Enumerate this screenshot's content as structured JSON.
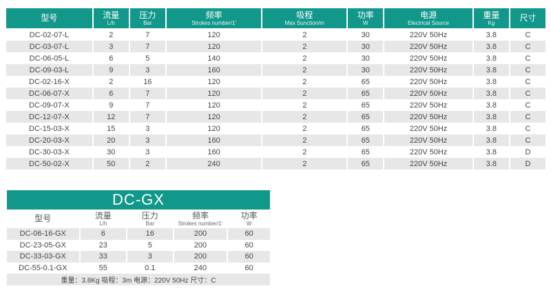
{
  "main_table": {
    "headers": [
      {
        "cn": "型号",
        "en": ""
      },
      {
        "cn": "流量",
        "en": "L/h"
      },
      {
        "cn": "压力",
        "en": "Bar"
      },
      {
        "cn": "频率",
        "en": "Strokes number/1'"
      },
      {
        "cn": "吸程",
        "en": "Max Sunction/m"
      },
      {
        "cn": "功率",
        "en": "W"
      },
      {
        "cn": "电源",
        "en": "Electrical Source"
      },
      {
        "cn": "重量",
        "en": "Kg"
      },
      {
        "cn": "尺寸",
        "en": ""
      }
    ],
    "rows": [
      [
        "DC-02-07-L",
        "2",
        "7",
        "120",
        "2",
        "30",
        "220V 50Hz",
        "3.8",
        "C"
      ],
      [
        "DC-03-07-L",
        "3",
        "7",
        "120",
        "2",
        "30",
        "220V 50Hz",
        "3.8",
        "C"
      ],
      [
        "DC-06-05-L",
        "6",
        "5",
        "140",
        "2",
        "30",
        "220V 50Hz",
        "3.8",
        "C"
      ],
      [
        "DC-09-03-L",
        "9",
        "3",
        "160",
        "2",
        "30",
        "220V 50Hz",
        "3.8",
        "C"
      ],
      [
        "DC-02-16-X",
        "2",
        "16",
        "120",
        "2",
        "65",
        "220V 50Hz",
        "3.8",
        "C"
      ],
      [
        "DC-06-07-X",
        "6",
        "7",
        "120",
        "2",
        "65",
        "220V 50Hz",
        "3.8",
        "C"
      ],
      [
        "DC-09-07-X",
        "9",
        "7",
        "120",
        "2",
        "65",
        "220V 50Hz",
        "3.8",
        "C"
      ],
      [
        "DC-12-07-X",
        "12",
        "7",
        "120",
        "2",
        "65",
        "220V 50Hz",
        "3.8",
        "C"
      ],
      [
        "DC-15-03-X",
        "15",
        "3",
        "120",
        "2",
        "65",
        "220V 50Hz",
        "3.8",
        "C"
      ],
      [
        "DC-20-03-X",
        "20",
        "3",
        "160",
        "2",
        "65",
        "220V 50Hz",
        "3.8",
        "C"
      ],
      [
        "DC-30-03-X",
        "30",
        "3",
        "160",
        "2",
        "65",
        "220V 50Hz",
        "3.8",
        "D"
      ],
      [
        "DC-50-02-X",
        "50",
        "2",
        "240",
        "2",
        "65",
        "220V 50Hz",
        "3.8",
        "D"
      ]
    ]
  },
  "gx_table": {
    "title": "DC-GX",
    "headers": [
      {
        "cn": "型号",
        "en": ""
      },
      {
        "cn": "流量",
        "en": "L/h"
      },
      {
        "cn": "压力",
        "en": "Bar"
      },
      {
        "cn": "频率",
        "en": "Strokes number/1'"
      },
      {
        "cn": "功率",
        "en": "W"
      }
    ],
    "rows": [
      [
        "DC-06-16-GX",
        "6",
        "16",
        "200",
        "60"
      ],
      [
        "DC-23-05-GX",
        "23",
        "5",
        "200",
        "60"
      ],
      [
        "DC-33-03-GX",
        "33",
        "3",
        "200",
        "60"
      ],
      [
        "DC-55-0.1-GX",
        "55",
        "0.1",
        "240",
        "60"
      ]
    ],
    "footer": "重量：3.8Kg 吸程：3m 电源：220V 50Hz 尺寸：C"
  },
  "colors": {
    "header_bg": "#12988a",
    "alt_row": "#e7e7e7"
  }
}
